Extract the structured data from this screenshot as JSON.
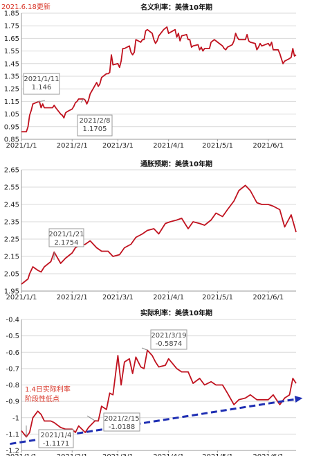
{
  "update_note": "2021.6.18更新",
  "colors": {
    "series": "#c0121f",
    "trend": "#1f2fb3",
    "grid": "#d9d9d9",
    "note_text": "#d9382b"
  },
  "chart_data": [
    {
      "type": "line",
      "title": "名义利率：美债10年期",
      "x_ticks": [
        "2021/1/1",
        "2021/2/1",
        "2021/3/1",
        "2021/4/1",
        "2021/5/1",
        "2021/6/1"
      ],
      "x_range": [
        "2021-01-01",
        "2021-06-18"
      ],
      "ylim": [
        0.85,
        1.85
      ],
      "y_ticks": [
        0.85,
        0.95,
        1.05,
        1.15,
        1.25,
        1.35,
        1.45,
        1.55,
        1.65,
        1.75,
        1.85
      ],
      "grid": "horizontal",
      "series": [
        {
          "x": [
            "2021-01-01",
            "2021-01-04",
            "2021-01-05",
            "2021-01-06",
            "2021-01-07",
            "2021-01-08",
            "2021-01-11",
            "2021-01-12",
            "2021-01-13",
            "2021-01-14",
            "2021-01-15",
            "2021-01-19",
            "2021-01-20",
            "2021-01-21",
            "2021-01-22",
            "2021-01-25",
            "2021-01-26",
            "2021-01-27",
            "2021-01-28",
            "2021-01-29",
            "2021-02-01",
            "2021-02-02",
            "2021-02-03",
            "2021-02-04",
            "2021-02-05",
            "2021-02-08",
            "2021-02-09",
            "2021-02-10",
            "2021-02-11",
            "2021-02-12",
            "2021-02-16",
            "2021-02-17",
            "2021-02-18",
            "2021-02-19",
            "2021-02-22",
            "2021-02-23",
            "2021-02-24",
            "2021-02-25",
            "2021-02-26",
            "2021-03-01",
            "2021-03-02",
            "2021-03-03",
            "2021-03-04",
            "2021-03-05",
            "2021-03-08",
            "2021-03-09",
            "2021-03-10",
            "2021-03-11",
            "2021-03-12",
            "2021-03-15",
            "2021-03-16",
            "2021-03-17",
            "2021-03-18",
            "2021-03-19",
            "2021-03-22",
            "2021-03-23",
            "2021-03-24",
            "2021-03-25",
            "2021-03-26",
            "2021-03-29",
            "2021-03-30",
            "2021-03-31",
            "2021-04-01",
            "2021-04-05",
            "2021-04-06",
            "2021-04-07",
            "2021-04-08",
            "2021-04-09",
            "2021-04-12",
            "2021-04-13",
            "2021-04-14",
            "2021-04-15",
            "2021-04-16",
            "2021-04-19",
            "2021-04-20",
            "2021-04-21",
            "2021-04-22",
            "2021-04-23",
            "2021-04-26",
            "2021-04-27",
            "2021-04-28",
            "2021-04-29",
            "2021-04-30",
            "2021-05-03",
            "2021-05-04",
            "2021-05-05",
            "2021-05-06",
            "2021-05-07",
            "2021-05-10",
            "2021-05-11",
            "2021-05-12",
            "2021-05-13",
            "2021-05-14",
            "2021-05-17",
            "2021-05-18",
            "2021-05-19",
            "2021-05-20",
            "2021-05-21",
            "2021-05-24",
            "2021-05-25",
            "2021-05-26",
            "2021-05-27",
            "2021-05-28",
            "2021-06-01",
            "2021-06-02",
            "2021-06-03",
            "2021-06-04",
            "2021-06-07",
            "2021-06-08",
            "2021-06-09",
            "2021-06-10",
            "2021-06-11",
            "2021-06-14",
            "2021-06-15",
            "2021-06-16",
            "2021-06-17",
            "2021-06-18"
          ],
          "y": [
            0.91,
            0.91,
            0.95,
            1.04,
            1.08,
            1.13,
            1.146,
            1.15,
            1.1,
            1.13,
            1.1,
            1.1,
            1.1,
            1.12,
            1.1,
            1.05,
            1.04,
            1.02,
            1.06,
            1.07,
            1.09,
            1.11,
            1.14,
            1.15,
            1.17,
            1.1705,
            1.16,
            1.13,
            1.16,
            1.21,
            1.3,
            1.27,
            1.29,
            1.34,
            1.37,
            1.37,
            1.38,
            1.52,
            1.44,
            1.45,
            1.42,
            1.47,
            1.57,
            1.57,
            1.59,
            1.54,
            1.52,
            1.54,
            1.64,
            1.62,
            1.64,
            1.64,
            1.71,
            1.72,
            1.69,
            1.64,
            1.61,
            1.63,
            1.67,
            1.72,
            1.73,
            1.74,
            1.69,
            1.72,
            1.66,
            1.69,
            1.63,
            1.67,
            1.68,
            1.64,
            1.64,
            1.58,
            1.59,
            1.6,
            1.56,
            1.58,
            1.55,
            1.57,
            1.57,
            1.62,
            1.63,
            1.64,
            1.63,
            1.6,
            1.59,
            1.57,
            1.56,
            1.58,
            1.6,
            1.63,
            1.69,
            1.66,
            1.64,
            1.64,
            1.64,
            1.68,
            1.63,
            1.62,
            1.61,
            1.56,
            1.58,
            1.61,
            1.59,
            1.61,
            1.59,
            1.62,
            1.56,
            1.56,
            1.53,
            1.49,
            1.45,
            1.47,
            1.49,
            1.5,
            1.57,
            1.51,
            1.52
          ]
        }
      ],
      "annotations": [
        {
          "x": "2021-01-11",
          "y": 1.146,
          "label_date": "2021/1/11",
          "label_value": "1.146"
        },
        {
          "x": "2021-02-08",
          "y": 1.1705,
          "label_date": "2021/2/8",
          "label_value": "1.1705"
        }
      ]
    },
    {
      "type": "line",
      "title": "通胀预期：美债10年期",
      "x_ticks": [
        "2021/1/1",
        "2021/2/1",
        "2021/3/1",
        "2021/4/1",
        "2021/5/1",
        "2021/6/1"
      ],
      "x_range": [
        "2021-01-01",
        "2021-06-18"
      ],
      "ylim": [
        1.95,
        2.65
      ],
      "y_ticks": [
        1.95,
        2.05,
        2.15,
        2.25,
        2.35,
        2.45,
        2.55,
        2.65
      ],
      "grid": "horizontal",
      "series": [
        {
          "x": [
            "2021-01-01",
            "2021-01-05",
            "2021-01-06",
            "2021-01-08",
            "2021-01-11",
            "2021-01-13",
            "2021-01-15",
            "2021-01-19",
            "2021-01-21",
            "2021-01-25",
            "2021-01-28",
            "2021-02-01",
            "2021-02-03",
            "2021-02-05",
            "2021-02-09",
            "2021-02-12",
            "2021-02-16",
            "2021-02-19",
            "2021-02-23",
            "2021-02-26",
            "2021-03-02",
            "2021-03-05",
            "2021-03-09",
            "2021-03-12",
            "2021-03-16",
            "2021-03-19",
            "2021-03-23",
            "2021-03-26",
            "2021-03-30",
            "2021-04-02",
            "2021-04-06",
            "2021-04-09",
            "2021-04-13",
            "2021-04-16",
            "2021-04-20",
            "2021-04-23",
            "2021-04-27",
            "2021-04-30",
            "2021-05-04",
            "2021-05-07",
            "2021-05-11",
            "2021-05-14",
            "2021-05-18",
            "2021-05-21",
            "2021-05-25",
            "2021-05-28",
            "2021-06-01",
            "2021-06-04",
            "2021-06-08",
            "2021-06-11",
            "2021-06-15",
            "2021-06-18"
          ],
          "y": [
            1.99,
            2.02,
            2.05,
            2.09,
            2.07,
            2.06,
            2.09,
            2.12,
            2.1754,
            2.11,
            2.14,
            2.17,
            2.2,
            2.21,
            2.22,
            2.24,
            2.2,
            2.18,
            2.18,
            2.15,
            2.16,
            2.2,
            2.22,
            2.26,
            2.28,
            2.3,
            2.31,
            2.28,
            2.34,
            2.35,
            2.36,
            2.37,
            2.31,
            2.35,
            2.34,
            2.33,
            2.36,
            2.4,
            2.38,
            2.42,
            2.47,
            2.53,
            2.56,
            2.53,
            2.46,
            2.45,
            2.45,
            2.44,
            2.42,
            2.32,
            2.39,
            2.29
          ]
        }
      ],
      "annotations": [
        {
          "x": "2021-01-21",
          "y": 2.1754,
          "label_date": "2021/1/21",
          "label_value": "2.1754"
        }
      ]
    },
    {
      "type": "line",
      "title": "实际利率：美债10年期",
      "x_ticks": [
        "2021/1/1",
        "2021/2/1",
        "2021/3/1",
        "2021/4/1",
        "2021/5/1",
        "2021/6/1"
      ],
      "x_range": [
        "2021-01-01",
        "2021-06-18"
      ],
      "ylim": [
        -1.2,
        -0.4
      ],
      "y_ticks": [
        -1.2,
        -1.1,
        -1.0,
        -0.9,
        -0.8,
        -0.7,
        -0.6,
        -0.5,
        -0.4
      ],
      "y_tick_labels": [
        "-1.2",
        "-1.1",
        "-1",
        "-0.9",
        "-0.8",
        "-0.7",
        "-0.6",
        "-0.5",
        "-0.4"
      ],
      "grid": "horizontal",
      "series": [
        {
          "x": [
            "2021-01-01",
            "2021-01-04",
            "2021-01-06",
            "2021-01-08",
            "2021-01-11",
            "2021-01-13",
            "2021-01-15",
            "2021-01-19",
            "2021-01-21",
            "2021-01-25",
            "2021-01-28",
            "2021-02-01",
            "2021-02-03",
            "2021-02-05",
            "2021-02-09",
            "2021-02-11",
            "2021-02-15",
            "2021-02-17",
            "2021-02-19",
            "2021-02-22",
            "2021-02-24",
            "2021-02-26",
            "2021-03-01",
            "2021-03-03",
            "2021-03-05",
            "2021-03-08",
            "2021-03-10",
            "2021-03-12",
            "2021-03-15",
            "2021-03-17",
            "2021-03-19",
            "2021-03-22",
            "2021-03-24",
            "2021-03-26",
            "2021-03-30",
            "2021-04-01",
            "2021-04-06",
            "2021-04-09",
            "2021-04-13",
            "2021-04-16",
            "2021-04-20",
            "2021-04-23",
            "2021-04-27",
            "2021-04-30",
            "2021-05-04",
            "2021-05-07",
            "2021-05-11",
            "2021-05-14",
            "2021-05-18",
            "2021-05-21",
            "2021-05-25",
            "2021-05-28",
            "2021-06-01",
            "2021-06-04",
            "2021-06-08",
            "2021-06-11",
            "2021-06-14",
            "2021-06-16",
            "2021-06-18"
          ],
          "y": [
            -1.08,
            -1.1171,
            -1.09,
            -1.0,
            -0.96,
            -0.98,
            -1.02,
            -1.02,
            -1.03,
            -1.06,
            -1.07,
            -1.07,
            -1.09,
            -1.05,
            -1.09,
            -1.06,
            -1.0188,
            -1.02,
            -0.93,
            -0.95,
            -0.85,
            -0.86,
            -0.62,
            -0.8,
            -0.66,
            -0.64,
            -0.73,
            -0.63,
            -0.69,
            -0.7,
            -0.5874,
            -0.62,
            -0.66,
            -0.69,
            -0.68,
            -0.64,
            -0.7,
            -0.72,
            -0.72,
            -0.79,
            -0.76,
            -0.8,
            -0.78,
            -0.8,
            -0.8,
            -0.85,
            -0.92,
            -0.89,
            -0.88,
            -0.86,
            -0.89,
            -0.89,
            -0.89,
            -0.86,
            -0.92,
            -0.88,
            -0.86,
            -0.76,
            -0.79
          ]
        }
      ],
      "annotations": [
        {
          "x": "2021-01-04",
          "y": -1.1171,
          "label_date": "2021/1/4",
          "label_value": "-1.1171"
        },
        {
          "x": "2021-02-15",
          "y": -1.0188,
          "label_date": "2021/2/15",
          "label_value": "-1.0188"
        },
        {
          "x": "2021-03-19",
          "y": -0.5874,
          "label_date": "2021/3/19",
          "label_value": "-0.5874"
        }
      ],
      "side_note": [
        "1.4日实际利率",
        "阶段性低点"
      ],
      "trend_line": {
        "from": {
          "x": "2020-12-25",
          "y": -1.16
        },
        "to": {
          "x": "2021-06-22",
          "y": -0.88
        },
        "style": "dashed-arrow"
      }
    }
  ]
}
